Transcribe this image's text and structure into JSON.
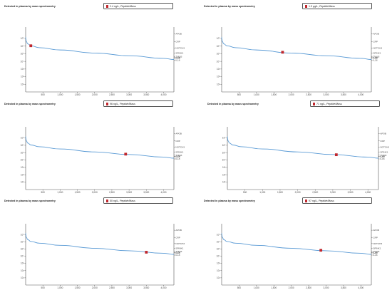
{
  "chart_data": [
    {
      "type": "line",
      "title": "Detected in plasma by mass spectrometry",
      "legend_label": "2.4 ng/L",
      "legend_protein": "Peptide/Mass",
      "x": [
        1,
        5,
        20,
        60,
        150,
        400,
        1000,
        2000,
        3000,
        4000,
        4300
      ],
      "y": [
        7.2,
        6.95,
        6.6,
        6.3,
        6.05,
        5.8,
        5.5,
        5.1,
        4.75,
        4.4,
        4.25
      ],
      "highlight": {
        "x": 150,
        "y": 6.05
      },
      "xlim": [
        0,
        4300
      ],
      "ylim": [
        0,
        8.5
      ],
      "x_ticks": [
        "500",
        "1,000",
        "1,500",
        "2,000",
        "2,500",
        "3,000",
        "3,500",
        "4,000"
      ],
      "y_ticks": [
        "10⁷",
        "10⁶",
        "10⁵",
        "10⁴",
        "10³",
        "10²",
        "10¹"
      ],
      "right_labels": [
        "APOB",
        "CRP",
        "NOTCH3",
        "SPINK1",
        "TNNI3",
        "IL6R",
        "IL10",
        "IL18"
      ],
      "right_y": [
        7.6,
        6.6,
        5.75,
        5.1,
        4.65,
        4.5,
        4.45,
        4.15
      ]
    },
    {
      "type": "line",
      "title": "Detected in plasma by mass spectrometry",
      "legend_label": "1.3 µg/L",
      "legend_protein": "Peptide/Mass",
      "x": [
        1,
        5,
        20,
        60,
        150,
        400,
        1000,
        2000,
        3000,
        4000,
        4300
      ],
      "y": [
        7.2,
        6.95,
        6.6,
        6.3,
        6.05,
        5.8,
        5.5,
        5.1,
        4.75,
        4.4,
        4.25
      ],
      "highlight": {
        "x": 1750,
        "y": 5.2
      },
      "xlim": [
        0,
        4300
      ],
      "ylim": [
        0,
        8.5
      ],
      "x_ticks": [
        "500",
        "1,000",
        "1,500",
        "2,000",
        "2,500",
        "3,000",
        "3,500",
        "4,000"
      ],
      "y_ticks": [
        "10⁷",
        "10⁶",
        "10⁵",
        "10⁴",
        "10³",
        "10²",
        "10¹"
      ],
      "right_labels": [
        "APOB",
        "CRP",
        "NOTCH3",
        "SPINK1",
        "TNNI3",
        "IL6R",
        "IL10",
        "IL18"
      ],
      "right_y": [
        7.6,
        6.6,
        5.75,
        5.1,
        4.65,
        4.5,
        4.45,
        4.15
      ]
    },
    {
      "type": "line",
      "title": "Detected in plasma by mass spectrometry",
      "legend_label": "96 ng/L",
      "legend_protein": "Peptide/Mass",
      "x": [
        1,
        5,
        20,
        60,
        150,
        400,
        1000,
        2000,
        3000,
        4000,
        4300
      ],
      "y": [
        7.2,
        6.95,
        6.6,
        6.3,
        6.05,
        5.8,
        5.5,
        5.1,
        4.75,
        4.4,
        4.25
      ],
      "highlight": {
        "x": 2900,
        "y": 4.8
      },
      "xlim": [
        0,
        4300
      ],
      "ylim": [
        0,
        8.5
      ],
      "x_ticks": [
        "500",
        "1,000",
        "1,500",
        "2,000",
        "2,500",
        "3,000",
        "3,500",
        "4,000"
      ],
      "y_ticks": [
        "10⁷",
        "10⁶",
        "10⁵",
        "10⁴",
        "10³",
        "10²",
        "10¹"
      ],
      "right_labels": [
        "APOB",
        "CRP",
        "NOTCH3",
        "SPINK1",
        "TNNI3",
        "IL6R",
        "IL10",
        "IL18"
      ],
      "right_y": [
        7.6,
        6.6,
        5.75,
        5.1,
        4.65,
        4.5,
        4.45,
        4.15
      ]
    },
    {
      "type": "line",
      "title": "Detected in plasma by mass spectrometry",
      "legend_label": "71 ng/L",
      "legend_protein": "Peptide/Mass",
      "x": [
        1,
        5,
        20,
        60,
        150,
        400,
        1000,
        2000,
        3000,
        4000,
        4300
      ],
      "y": [
        7.2,
        6.95,
        6.6,
        6.3,
        6.05,
        5.8,
        5.5,
        5.1,
        4.75,
        4.4,
        4.25
      ],
      "highlight": {
        "x": 3100,
        "y": 4.72
      },
      "xlim": [
        0,
        4300
      ],
      "ylim": [
        0,
        8.5
      ],
      "x_ticks": [
        "500",
        "1,000",
        "1,500",
        "2,000",
        "2,500",
        "3,000",
        "3,500",
        "4,000"
      ],
      "y_ticks": [
        "10⁷",
        "10⁶",
        "10⁵",
        "10⁴",
        "10³",
        "10²",
        "10¹"
      ],
      "right_labels": [
        "APOB",
        "CRP",
        "NOTCH3",
        "SPINK1",
        "TNNI3",
        "IL6R",
        "IL10",
        "IL18"
      ],
      "right_y": [
        7.6,
        6.6,
        5.75,
        5.1,
        4.65,
        4.5,
        4.45,
        4.15
      ]
    },
    {
      "type": "line",
      "title": "Detected in plasma by mass spectrometry",
      "legend_label": "50 ng/L",
      "legend_protein": "Peptide/Mass",
      "x": [
        1,
        5,
        20,
        60,
        150,
        400,
        1000,
        2000,
        3000,
        4000,
        4300
      ],
      "y": [
        7.2,
        6.95,
        6.6,
        6.3,
        6.05,
        5.8,
        5.5,
        5.1,
        4.75,
        4.4,
        4.25
      ],
      "highlight": {
        "x": 3500,
        "y": 4.55
      },
      "xlim": [
        0,
        4300
      ],
      "ylim": [
        0,
        8.5
      ],
      "x_ticks": [
        "500",
        "1,000",
        "1,500",
        "2,000",
        "2,500",
        "3,000",
        "3,500",
        "4,000"
      ],
      "y_ticks": [
        "10⁷",
        "10⁶",
        "10⁵",
        "10⁴",
        "10³",
        "10²",
        "10¹"
      ],
      "right_labels": [
        "APOB",
        "CRP",
        "NOTCH3",
        "SPINK1",
        "TNNI3",
        "IL6R",
        "IL10",
        "IL18"
      ],
      "right_y": [
        7.6,
        6.6,
        5.75,
        5.1,
        4.65,
        4.5,
        4.45,
        4.15
      ]
    },
    {
      "type": "line",
      "title": "Detected in plasma by mass spectrometry",
      "legend_label": "97 ng/L",
      "legend_protein": "Peptide/Mass",
      "x": [
        1,
        5,
        20,
        60,
        150,
        400,
        1000,
        2000,
        3000,
        4000,
        4300
      ],
      "y": [
        7.2,
        6.95,
        6.6,
        6.3,
        6.05,
        5.8,
        5.5,
        5.1,
        4.75,
        4.4,
        4.25
      ],
      "highlight": {
        "x": 2850,
        "y": 4.82
      },
      "xlim": [
        0,
        4300
      ],
      "ylim": [
        0,
        8.5
      ],
      "x_ticks": [
        "500",
        "1,000",
        "1,500",
        "2,000",
        "2,500",
        "3,000",
        "3,500",
        "4,000"
      ],
      "y_ticks": [
        "10⁷",
        "10⁶",
        "10⁵",
        "10⁴",
        "10³",
        "10²",
        "10¹"
      ],
      "right_labels": [
        "APOB",
        "CRP",
        "NOTCH3",
        "SPINK1",
        "TNNI3",
        "IL6R",
        "IL10",
        "IL18"
      ],
      "right_y": [
        7.6,
        6.6,
        5.75,
        5.1,
        4.65,
        4.5,
        4.45,
        4.15
      ]
    }
  ],
  "colors": {
    "curve": "#5b9bd5",
    "highlight": "#c0272d",
    "axis": "#555555"
  }
}
